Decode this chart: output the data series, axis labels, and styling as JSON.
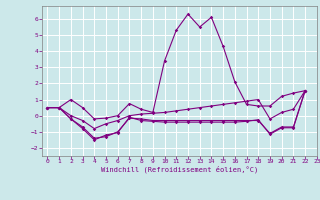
{
  "xlabel": "Windchill (Refroidissement éolien,°C)",
  "background_color": "#cce8ea",
  "grid_color": "#ffffff",
  "line_color": "#800080",
  "xlim": [
    -0.5,
    23
  ],
  "ylim": [
    -2.5,
    6.8
  ],
  "yticks": [
    -2,
    -1,
    0,
    1,
    2,
    3,
    4,
    5,
    6
  ],
  "xticks": [
    0,
    1,
    2,
    3,
    4,
    5,
    6,
    7,
    8,
    9,
    10,
    11,
    12,
    13,
    14,
    15,
    16,
    17,
    18,
    19,
    20,
    21,
    22,
    23
  ],
  "series": [
    [
      0.5,
      0.5,
      1.0,
      0.5,
      -0.2,
      -0.15,
      0.0,
      0.75,
      0.4,
      0.2,
      3.4,
      5.3,
      6.3,
      5.5,
      6.1,
      4.3,
      2.1,
      0.7,
      0.6,
      0.6,
      1.2,
      1.4,
      1.55
    ],
    [
      0.5,
      0.5,
      -0.2,
      -0.7,
      -1.4,
      -1.3,
      -1.0,
      -0.15,
      -0.2,
      -0.3,
      -0.3,
      -0.3,
      -0.3,
      -0.3,
      -0.3,
      -0.3,
      -0.3,
      -0.3,
      -0.3,
      -1.1,
      -0.7,
      -0.7,
      1.55
    ],
    [
      0.5,
      0.5,
      -0.2,
      -0.8,
      -1.5,
      -1.2,
      -1.05,
      -0.1,
      -0.3,
      -0.35,
      -0.4,
      -0.4,
      -0.4,
      -0.4,
      -0.4,
      -0.4,
      -0.4,
      -0.35,
      -0.25,
      -1.15,
      -0.75,
      -0.75,
      1.55
    ],
    [
      0.5,
      0.5,
      0.0,
      -0.3,
      -0.8,
      -0.5,
      -0.3,
      0.0,
      0.1,
      0.15,
      0.2,
      0.3,
      0.4,
      0.5,
      0.6,
      0.7,
      0.8,
      0.9,
      1.0,
      -0.2,
      0.2,
      0.4,
      1.55
    ]
  ],
  "series_x": [
    [
      0,
      1,
      2,
      3,
      4,
      5,
      6,
      7,
      8,
      9,
      10,
      11,
      12,
      13,
      14,
      15,
      16,
      17,
      18,
      19,
      20,
      21,
      22
    ],
    [
      0,
      1,
      2,
      3,
      4,
      5,
      6,
      7,
      8,
      9,
      10,
      11,
      12,
      13,
      14,
      15,
      16,
      17,
      18,
      19,
      20,
      21,
      22
    ],
    [
      0,
      1,
      2,
      3,
      4,
      5,
      6,
      7,
      8,
      9,
      10,
      11,
      12,
      13,
      14,
      15,
      16,
      17,
      18,
      19,
      20,
      21,
      22
    ],
    [
      0,
      1,
      2,
      3,
      4,
      5,
      6,
      7,
      8,
      9,
      10,
      11,
      12,
      13,
      14,
      15,
      16,
      17,
      18,
      19,
      20,
      21,
      22
    ]
  ],
  "tick_fontsize": 4.5,
  "xlabel_fontsize": 5.0,
  "spine_color": "#808080"
}
